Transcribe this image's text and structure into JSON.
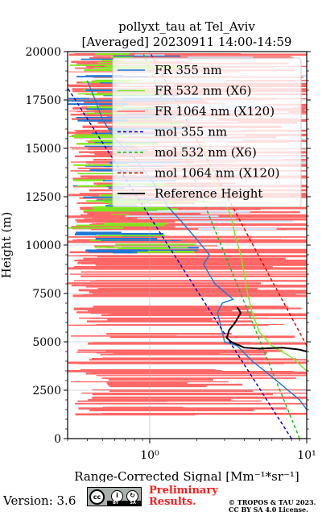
{
  "chart_data": {
    "type": "line",
    "title_line1": "pollyxt_tau at Tel_Aviv",
    "title_line2": "[Averaged] 20230911 14:00-14:59",
    "xlabel": "Range-Corrected Signal [Mm⁻¹*sr⁻¹]",
    "ylabel": "Height (m)",
    "xscale": "log",
    "xlim": [
      0.3,
      10
    ],
    "ylim": [
      0,
      20000
    ],
    "xticks": [
      1,
      10
    ],
    "xticklabels": [
      "10⁰",
      "10¹"
    ],
    "yticks": [
      0,
      2500,
      5000,
      7500,
      10000,
      12500,
      15000,
      17500,
      20000
    ],
    "yticklabels": [
      "0",
      "2500",
      "5000",
      "7500",
      "10000",
      "12500",
      "15000",
      "17500",
      "20000"
    ],
    "grid": true,
    "legend_position": "top-right",
    "series": [
      {
        "name": "FR 355 nm",
        "color": "#1f77d4",
        "style": "solid",
        "x": [
          10,
          9,
          6,
          4.5,
          3.6,
          3.0,
          2.8,
          2.7,
          2.9,
          3.4,
          2.6,
          2.2,
          2.4,
          1.9,
          1.6,
          1.3,
          1.2,
          1.0,
          0.8,
          0.6,
          0.5,
          0.45,
          0.4
        ],
        "y": [
          1500,
          2000,
          3200,
          4000,
          4800,
          5000,
          6000,
          6500,
          7000,
          7200,
          8000,
          9000,
          9500,
          10500,
          11200,
          12000,
          12500,
          13500,
          14500,
          15500,
          16500,
          17500,
          18500
        ]
      },
      {
        "name": "FR 532 nm (X6)",
        "color": "#7dea1b",
        "style": "solid",
        "x": [
          10,
          8,
          6,
          5,
          4.5,
          4.2,
          4.0,
          3.8,
          3.5,
          3.3,
          3.0,
          2.8,
          2.5,
          2.3,
          2.2
        ],
        "y": [
          3500,
          4200,
          4800,
          5500,
          6500,
          7500,
          8500,
          9500,
          10500,
          11500,
          12200,
          12800,
          13500,
          14500,
          15500
        ]
      },
      {
        "name": "FR 1064 nm (X120)",
        "color": "#ff6666",
        "style": "solid",
        "x": [],
        "y": []
      },
      {
        "name": "mol 355 nm",
        "color": "#0000cc",
        "style": "dashed",
        "x": [
          8.0,
          0.28
        ],
        "y": [
          0,
          18500
        ]
      },
      {
        "name": "mol 532 nm (X6)",
        "color": "#1db31d",
        "style": "dashed",
        "x": [
          9.0,
          0.9
        ],
        "y": [
          0,
          20000
        ]
      },
      {
        "name": "mol 1064 nm (X120)",
        "color": "#e00000",
        "style": "dashed",
        "x": [
          10.0,
          1.0
        ],
        "y": [
          4800,
          20000
        ]
      },
      {
        "name": "Reference Height",
        "color": "#000000",
        "style": "solid",
        "x": [
          10,
          9,
          7,
          5,
          4,
          3.3,
          3.1,
          3.2,
          3.5,
          3.8,
          3.6
        ],
        "y": [
          4500,
          4600,
          4700,
          4650,
          4700,
          5000,
          5200,
          5600,
          6000,
          6500,
          6800
        ]
      }
    ]
  },
  "footer": {
    "version": "Version: 3.6",
    "cc_strip_by": "BY",
    "cc_strip_sa": "SA",
    "cc_glyph": "cc",
    "by_glyph": "i",
    "sa_glyph": "↻",
    "preliminary_line1": "Preliminary",
    "preliminary_line2": "Results.",
    "copyright_line1": "© TROPOS & TAU 2023.",
    "copyright_line2": "CC BY SA 4.0 License."
  }
}
